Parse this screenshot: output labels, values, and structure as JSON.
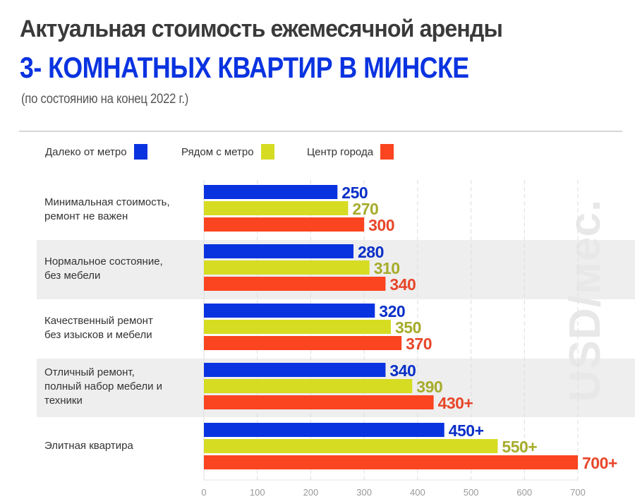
{
  "header": {
    "title_line1": "Актуальная стоимость ежемесячной аренды",
    "title_line2": "3- КОМНАТНЫХ КВАРТИР В МИНСКЕ",
    "subtitle": "(по состоянию на конец 2022 г.)"
  },
  "watermark": "USD/мес.",
  "colors": {
    "title_dark": "#3a3a3a",
    "title_accent": "#0a33e0",
    "band": "#eeeeee",
    "grid": "#dddddd"
  },
  "legend": [
    {
      "label": "Далеко от метро",
      "color": "#0a33e0"
    },
    {
      "label": "Рядом с метро",
      "color": "#d6dc22"
    },
    {
      "label": "Центр города",
      "color": "#fb4420"
    }
  ],
  "chart_data": {
    "type": "bar",
    "orientation": "horizontal",
    "title": "Актуальная стоимость ежемесячной аренды 3- комнатных квартир в Минске",
    "subtitle": "(по состоянию на конец 2022 г.)",
    "xlabel": "",
    "ylabel": "USD/мес.",
    "xlim": [
      0,
      700
    ],
    "xticks": [
      0,
      100,
      200,
      300,
      400,
      500,
      600,
      700
    ],
    "grid": true,
    "legend_position": "top-left",
    "categories": [
      [
        "Минимальная стоимость,",
        "ремонт не важен"
      ],
      [
        "Нормальное состояние,",
        "без мебели"
      ],
      [
        "Качественный ремонт",
        "без изысков и мебели"
      ],
      [
        "Отличный ремонт,",
        "полный набор мебели и",
        "техники"
      ],
      [
        "Элитная квартира"
      ]
    ],
    "series": [
      {
        "name": "Далеко от метро",
        "color": "#0a33e0",
        "label_color": "#0a2fc8",
        "values": [
          250,
          280,
          320,
          340,
          450
        ],
        "labels": [
          "250",
          "280",
          "320",
          "340",
          "450+"
        ]
      },
      {
        "name": "Рядом с метро",
        "color": "#d6dc22",
        "label_color": "#a6ac2a",
        "values": [
          270,
          310,
          350,
          390,
          550
        ],
        "labels": [
          "270",
          "310",
          "350",
          "390",
          "550+"
        ]
      },
      {
        "name": "Центр города",
        "color": "#fb4420",
        "label_color": "#e8462a",
        "values": [
          300,
          340,
          370,
          430,
          700
        ],
        "labels": [
          "300",
          "340",
          "370",
          "430+",
          "700+"
        ]
      }
    ]
  }
}
